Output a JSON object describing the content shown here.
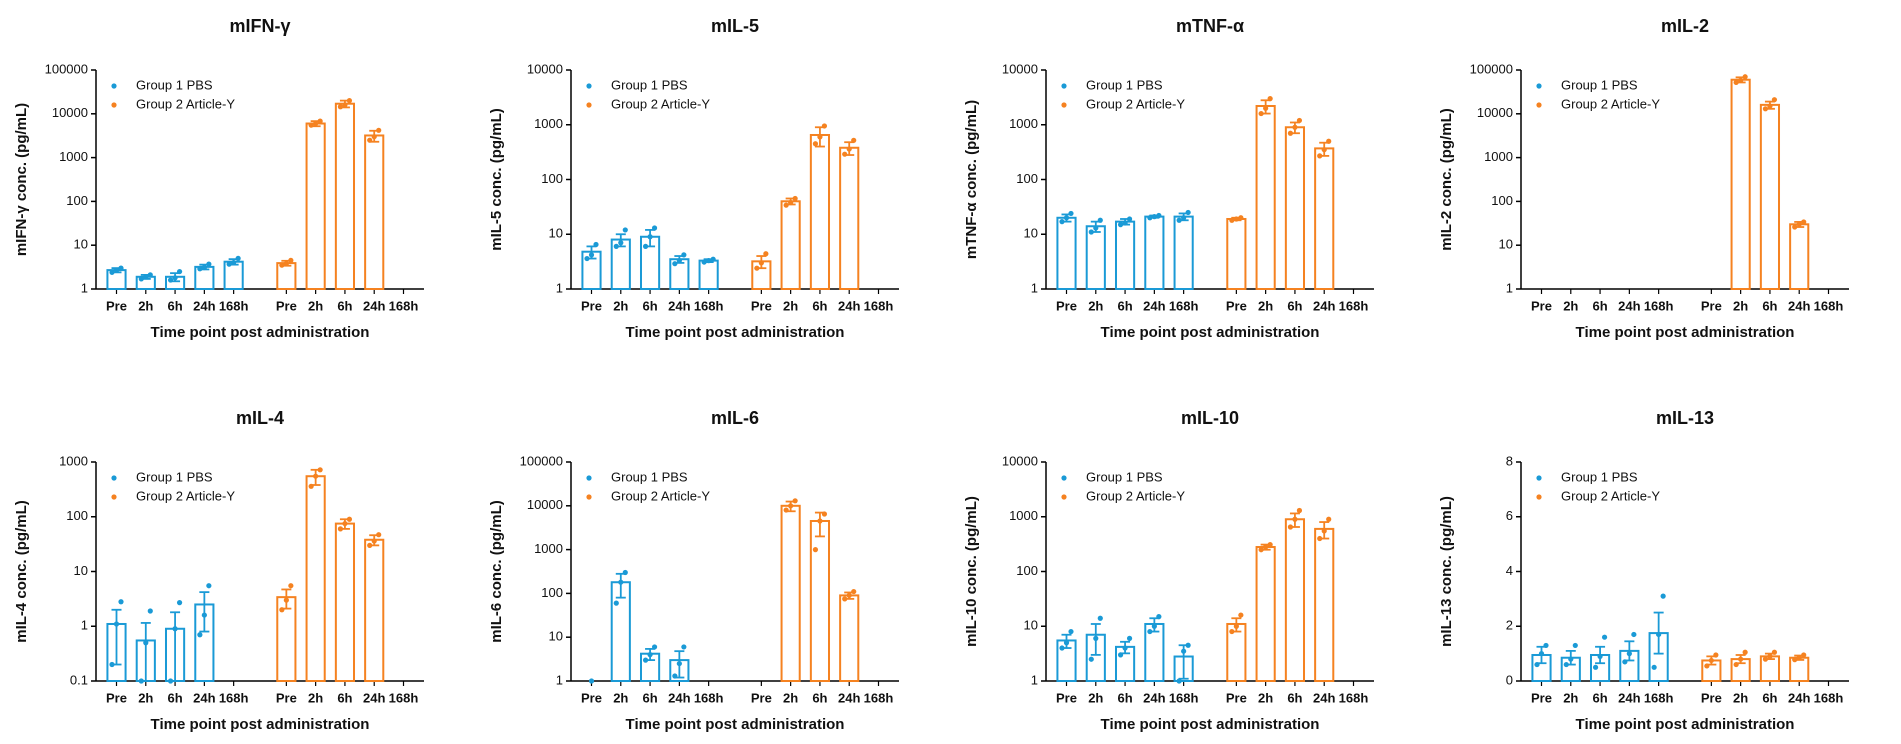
{
  "chart_data": [
    {
      "type": "bar",
      "title": "mIFN-γ",
      "y_label": "mIFN-γ conc. (pg/mL)",
      "x_label": "Time point post administration",
      "categories": [
        "Pre",
        "2h",
        "6h",
        "24h",
        "168h"
      ],
      "log_scale": true,
      "ylim": [
        1,
        100000
      ],
      "yticks": [
        1,
        10,
        100,
        1000,
        10000,
        100000
      ],
      "legend": "upper left",
      "series": [
        {
          "name": "Group 1 PBS",
          "color": "#1a9ad6",
          "values": [
            2.7,
            1.9,
            1.9,
            3.2,
            4.2
          ],
          "errors": [
            0.3,
            0.2,
            0.4,
            0.4,
            0.6
          ],
          "points": [
            [
              2.4,
              2.7,
              3.0
            ],
            [
              1.7,
              1.9,
              2.1
            ],
            [
              1.6,
              1.8,
              2.5
            ],
            [
              2.9,
              3.1,
              3.7
            ],
            [
              3.7,
              4.0,
              5.0
            ]
          ]
        },
        {
          "name": "Group 2 Article-Y",
          "color": "#f58220",
          "values": [
            3.9,
            6000,
            17000,
            3200,
            null
          ],
          "errors": [
            0.5,
            800,
            3000,
            900,
            null
          ],
          "points": [
            [
              3.5,
              3.8,
              4.5
            ],
            [
              5500,
              6000,
              6800
            ],
            [
              14500,
              16000,
              20000
            ],
            [
              2500,
              3000,
              4200
            ],
            null
          ]
        }
      ]
    },
    {
      "type": "bar",
      "title": "mIL-5",
      "y_label": "mIL-5 conc. (pg/mL)",
      "x_label": "Time point post administration",
      "categories": [
        "Pre",
        "2h",
        "6h",
        "24h",
        "168h"
      ],
      "log_scale": true,
      "ylim": [
        1,
        10000
      ],
      "yticks": [
        1,
        10,
        100,
        1000,
        10000
      ],
      "legend": "upper left",
      "series": [
        {
          "name": "Group 1 PBS",
          "color": "#1a9ad6",
          "values": [
            4.8,
            8,
            9,
            3.5,
            3.3
          ],
          "errors": [
            1.2,
            2,
            3,
            0.5,
            0.2
          ],
          "points": [
            [
              3.6,
              4.2,
              6.5
            ],
            [
              6,
              7,
              12
            ],
            [
              6,
              9,
              13
            ],
            [
              2.9,
              3.3,
              4.2
            ],
            [
              3.1,
              3.3,
              3.5
            ]
          ]
        },
        {
          "name": "Group 2 Article-Y",
          "color": "#f58220",
          "values": [
            3.2,
            40,
            650,
            380,
            null
          ],
          "errors": [
            0.8,
            5,
            250,
            100,
            null
          ],
          "points": [
            [
              2.4,
              3,
              4.4
            ],
            [
              34,
              38,
              45
            ],
            [
              450,
              600,
              950
            ],
            [
              290,
              360,
              520
            ],
            null
          ]
        }
      ]
    },
    {
      "type": "bar",
      "title": "mTNF-α",
      "y_label": "mTNF-α conc. (pg/mL)",
      "x_label": "Time point post administration",
      "categories": [
        "Pre",
        "2h",
        "6h",
        "24h",
        "168h"
      ],
      "log_scale": true,
      "ylim": [
        1,
        10000
      ],
      "yticks": [
        1,
        10,
        100,
        1000,
        10000
      ],
      "legend": "upper left",
      "series": [
        {
          "name": "Group 1 PBS",
          "color": "#1a9ad6",
          "values": [
            20,
            14,
            17,
            21,
            21
          ],
          "errors": [
            3,
            3,
            2,
            1,
            3
          ],
          "points": [
            [
              17,
              20,
              24
            ],
            [
              11,
              13,
              18
            ],
            [
              15,
              16,
              19
            ],
            [
              20,
              21,
              22
            ],
            [
              18,
              20,
              25
            ]
          ]
        },
        {
          "name": "Group 2 Article-Y",
          "color": "#f58220",
          "values": [
            19,
            2200,
            900,
            370,
            null
          ],
          "errors": [
            1,
            600,
            200,
            100,
            null
          ],
          "points": [
            [
              18,
              19,
              20
            ],
            [
              1600,
              2000,
              3000
            ],
            [
              700,
              900,
              1200
            ],
            [
              270,
              350,
              500
            ],
            null
          ]
        }
      ]
    },
    {
      "type": "bar",
      "title": "mIL-2",
      "y_label": "mIL-2 conc. (pg/mL)",
      "x_label": "Time point post administration",
      "categories": [
        "Pre",
        "2h",
        "6h",
        "24h",
        "168h"
      ],
      "log_scale": true,
      "ylim": [
        1,
        100000
      ],
      "yticks": [
        1,
        10,
        100,
        1000,
        10000,
        100000
      ],
      "legend": "upper left",
      "series": [
        {
          "name": "Group 1 PBS",
          "color": "#1a9ad6",
          "values": [
            null,
            null,
            null,
            null,
            null
          ],
          "errors": [
            null,
            null,
            null,
            null,
            null
          ],
          "points": [
            null,
            null,
            null,
            null,
            null
          ]
        },
        {
          "name": "Group 2 Article-Y",
          "color": "#f58220",
          "values": [
            null,
            60000,
            16000,
            30,
            null
          ],
          "errors": [
            null,
            8000,
            3000,
            4,
            null
          ],
          "points": [
            null,
            [
              52000,
              58000,
              70000
            ],
            [
              13000,
              15000,
              21000
            ],
            [
              26,
              30,
              34
            ],
            null
          ]
        }
      ]
    },
    {
      "type": "bar",
      "title": "mIL-4",
      "y_label": "mIL-4 conc. (pg/mL)",
      "x_label": "Time point post administration",
      "categories": [
        "Pre",
        "2h",
        "6h",
        "24h",
        "168h"
      ],
      "log_scale": true,
      "ylim": [
        0.1,
        1000
      ],
      "yticks": [
        0.1,
        1,
        10,
        100,
        1000
      ],
      "legend": "upper left",
      "series": [
        {
          "name": "Group 1 PBS",
          "color": "#1a9ad6",
          "values": [
            1.1,
            0.55,
            0.9,
            2.5,
            null
          ],
          "errors": [
            0.9,
            0.6,
            0.9,
            1.7,
            null
          ],
          "points": [
            [
              0.2,
              1.1,
              2.8
            ],
            [
              0.1,
              0.5,
              1.9
            ],
            [
              0.1,
              0.9,
              2.7
            ],
            [
              0.7,
              1.6,
              5.5
            ],
            null
          ]
        },
        {
          "name": "Group 2 Article-Y",
          "color": "#f58220",
          "values": [
            3.4,
            550,
            75,
            38,
            null
          ],
          "errors": [
            1.3,
            170,
            15,
            8,
            null
          ],
          "points": [
            [
              2,
              3,
              5.5
            ],
            [
              360,
              550,
              720
            ],
            [
              60,
              75,
              90
            ],
            [
              30,
              36,
              47
            ],
            null
          ]
        }
      ]
    },
    {
      "type": "bar",
      "title": "mIL-6",
      "y_label": "mIL-6 conc. (pg/mL)",
      "x_label": "Time point post administration",
      "categories": [
        "Pre",
        "2h",
        "6h",
        "24h",
        "168h"
      ],
      "log_scale": true,
      "ylim": [
        1,
        100000
      ],
      "yticks": [
        1,
        10,
        100,
        1000,
        10000,
        100000
      ],
      "legend": "upper left",
      "series": [
        {
          "name": "Group 1 PBS",
          "color": "#1a9ad6",
          "values": [
            null,
            180,
            4.2,
            3,
            null
          ],
          "errors": [
            null,
            100,
            1.2,
            1.8,
            null
          ],
          "points": [
            [
              1
            ],
            [
              60,
              180,
              300
            ],
            [
              3,
              4,
              6
            ],
            [
              1.3,
              2.5,
              6
            ],
            null
          ]
        },
        {
          "name": "Group 2 Article-Y",
          "color": "#f58220",
          "values": [
            null,
            10000,
            4500,
            90,
            null
          ],
          "errors": [
            null,
            2500,
            2500,
            15,
            null
          ],
          "points": [
            null,
            [
              8000,
              10000,
              13000
            ],
            [
              1000,
              4500,
              6500
            ],
            [
              75,
              90,
              110
            ],
            null
          ]
        }
      ]
    },
    {
      "type": "bar",
      "title": "mIL-10",
      "y_label": "mIL-10 conc. (pg/mL)",
      "x_label": "Time point post administration",
      "categories": [
        "Pre",
        "2h",
        "6h",
        "24h",
        "168h"
      ],
      "log_scale": true,
      "ylim": [
        1,
        10000
      ],
      "yticks": [
        1,
        10,
        100,
        1000,
        10000
      ],
      "legend": "upper left",
      "series": [
        {
          "name": "Group 1 PBS",
          "color": "#1a9ad6",
          "values": [
            5.5,
            7,
            4.2,
            11,
            2.8
          ],
          "errors": [
            1.5,
            4,
            1,
            3,
            1.7
          ],
          "points": [
            [
              4,
              5,
              8
            ],
            [
              2.5,
              6,
              14
            ],
            [
              3,
              4,
              6
            ],
            [
              8,
              10,
              15
            ],
            [
              1,
              3.5,
              4.5
            ]
          ]
        },
        {
          "name": "Group 2 Article-Y",
          "color": "#f58220",
          "values": [
            11,
            280,
            900,
            600,
            null
          ],
          "errors": [
            3,
            30,
            250,
            200,
            null
          ],
          "points": [
            [
              8,
              10,
              16
            ],
            [
              250,
              280,
              310
            ],
            [
              650,
              900,
              1300
            ],
            [
              400,
              550,
              900
            ],
            null
          ]
        }
      ]
    },
    {
      "type": "bar",
      "title": "mIL-13",
      "y_label": "mIL-13 conc. (pg/mL)",
      "x_label": "Time point post administration",
      "categories": [
        "Pre",
        "2h",
        "6h",
        "24h",
        "168h"
      ],
      "log_scale": false,
      "ylim": [
        0,
        8
      ],
      "yticks": [
        0,
        2,
        4,
        6,
        8
      ],
      "legend": "upper left",
      "series": [
        {
          "name": "Group 1 PBS",
          "color": "#1a9ad6",
          "values": [
            0.95,
            0.85,
            0.95,
            1.1,
            1.75
          ],
          "errors": [
            0.3,
            0.25,
            0.3,
            0.35,
            0.75
          ],
          "points": [
            [
              0.6,
              1.0,
              1.3
            ],
            [
              0.6,
              0.8,
              1.3
            ],
            [
              0.5,
              0.9,
              1.6
            ],
            [
              0.7,
              1.0,
              1.7
            ],
            [
              0.5,
              1.7,
              3.1
            ]
          ]
        },
        {
          "name": "Group 2 Article-Y",
          "color": "#f58220",
          "values": [
            0.75,
            0.8,
            0.9,
            0.85,
            null
          ],
          "errors": [
            0.15,
            0.15,
            0.1,
            0.08,
            null
          ],
          "points": [
            [
              0.55,
              0.75,
              0.95
            ],
            [
              0.6,
              0.8,
              1.05
            ],
            [
              0.8,
              0.9,
              1.05
            ],
            [
              0.78,
              0.85,
              0.95
            ],
            null
          ]
        }
      ]
    }
  ]
}
